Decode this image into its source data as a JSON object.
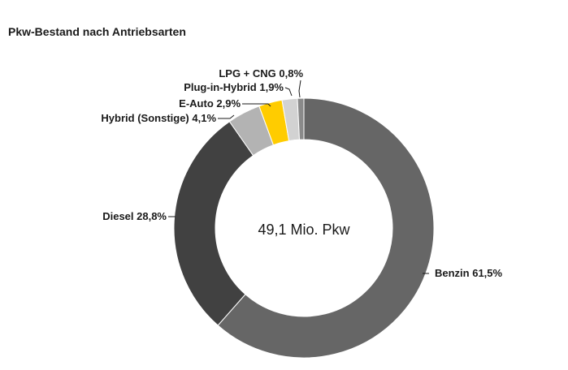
{
  "title": "Pkw-Bestand nach Antriebsarten",
  "chart_data": {
    "type": "pie",
    "title": "Pkw-Bestand nach Antriebsarten",
    "center_label": "49,1 Mio. Pkw",
    "unit": "%",
    "slices": [
      {
        "name": "Benzin",
        "value": 61.5,
        "label": "Benzin 61,5%",
        "color": "#666666"
      },
      {
        "name": "Diesel",
        "value": 28.8,
        "label": "Diesel 28,8%",
        "color": "#414141"
      },
      {
        "name": "Hybrid (Sonstige)",
        "value": 4.1,
        "label": "Hybrid (Sonstige) 4,1%",
        "color": "#b3b3b3"
      },
      {
        "name": "E-Auto",
        "value": 2.9,
        "label": "E-Auto 2,9%",
        "color": "#ffcc00"
      },
      {
        "name": "Plug-in-Hybrid",
        "value": 1.9,
        "label": "Plug-in-Hybrid 1,9%",
        "color": "#d2d2d2"
      },
      {
        "name": "LPG + CNG",
        "value": 0.8,
        "label": "LPG + CNG 0,8%",
        "color": "#8a8a8a"
      }
    ]
  }
}
